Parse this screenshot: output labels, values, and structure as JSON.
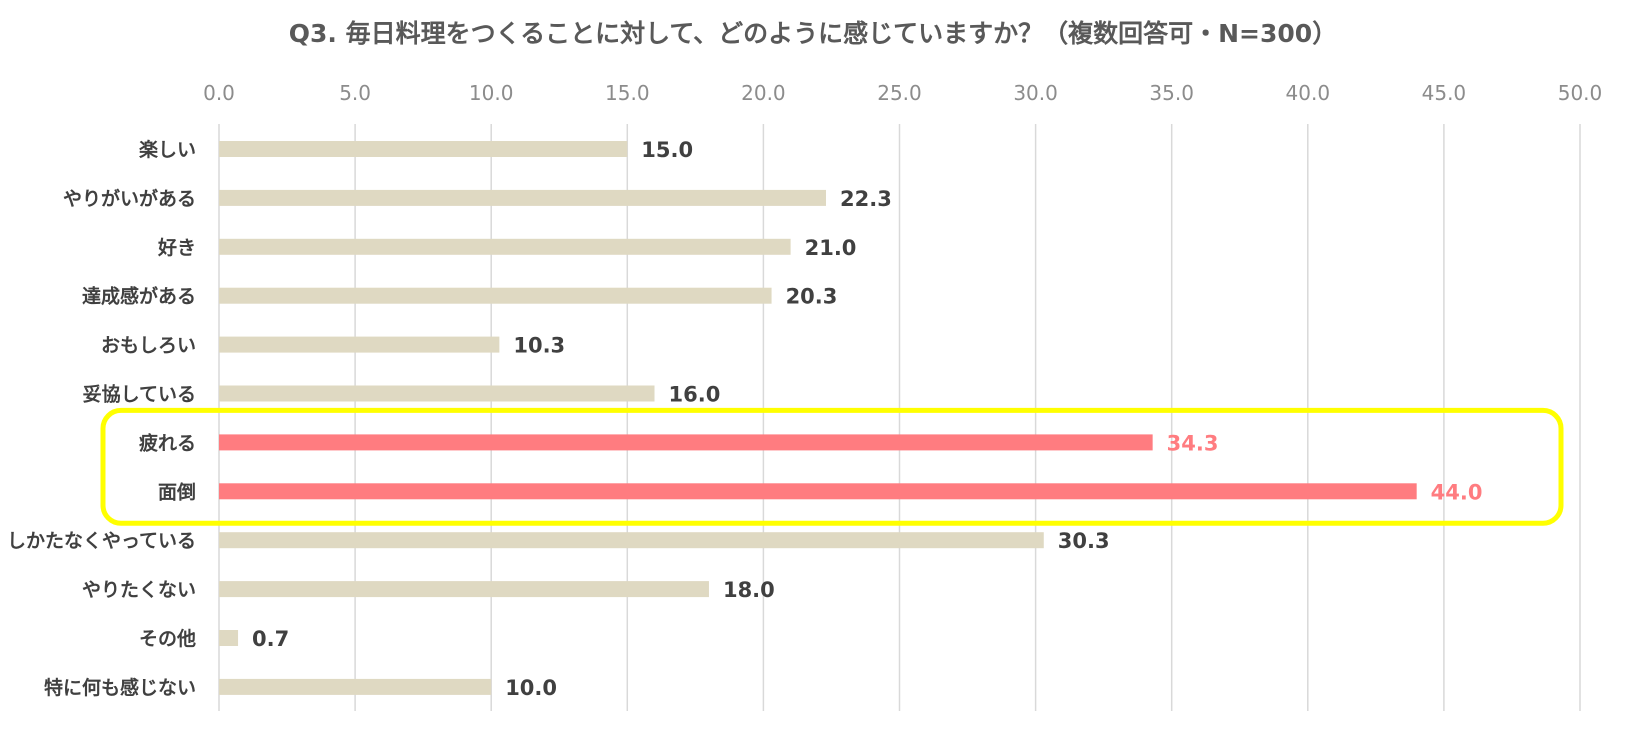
{
  "chart_data": {
    "type": "bar",
    "orientation": "horizontal",
    "title": "Q3. 毎日料理をつくることに対して、どのように感じていますか？（複数回答可・N=300）",
    "categories": [
      "楽しい",
      "やりがいがある",
      "好き",
      "達成感がある",
      "おもしろい",
      "妥協している",
      "疲れる",
      "面倒",
      "しかたなくやっている",
      "やりたくない",
      "その他",
      "特に何も感じない"
    ],
    "values": [
      15.0,
      22.3,
      21.0,
      20.3,
      10.3,
      16.0,
      34.3,
      44.0,
      30.3,
      18.0,
      0.7,
      10.0
    ],
    "highlighted": [
      "疲れる",
      "面倒"
    ],
    "xlim": [
      0,
      50
    ],
    "xticks": [
      "0.0",
      "5.0",
      "10.0",
      "15.0",
      "20.0",
      "25.0",
      "30.0",
      "35.0",
      "40.0",
      "45.0",
      "50.0"
    ],
    "xaxis_position": "top",
    "grid": true,
    "legend": "none",
    "colors": {
      "bar": "#dfd9c2",
      "highlight_bar": "#ff7c80",
      "highlight_label": "#ff7c80",
      "label": "#404040",
      "grid": "#d9d9d9",
      "tick": "#8c8c8c",
      "frame": "#ffff00"
    }
  }
}
